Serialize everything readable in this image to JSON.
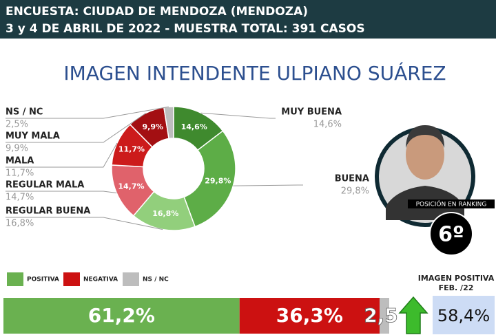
{
  "header": {
    "line1": "ENCUESTA: CIUDAD DE MENDOZA (MENDOZA)",
    "line2": "3 y 4 DE ABRIL DE 2022  - MUESTRA TOTAL: 391 CASOS"
  },
  "title": "IMAGEN INTENDENTE  ULPIANO SUÁREZ",
  "ranking": {
    "label": "POSICIÓN EN RANKING",
    "position": "6º"
  },
  "comparison": {
    "title": "IMAGEN POSITIVA",
    "subtitle": "FEB. /22",
    "value": "58,4%"
  },
  "chart_data": [
    {
      "type": "donut",
      "categories": [
        "MUY BUENA",
        "BUENA",
        "REGULAR BUENA",
        "REGULAR MALA",
        "MALA",
        "MUY MALA",
        "NS / NC"
      ],
      "values": [
        14.6,
        29.8,
        16.8,
        14.7,
        11.7,
        9.9,
        2.5
      ],
      "value_labels": [
        "14,6%",
        "29,8%",
        "16,8%",
        "14,7%",
        "11,7%",
        "9,9%",
        "2,5%"
      ],
      "colors": [
        "#3f8a2e",
        "#5dad47",
        "#92cf7c",
        "#e0626b",
        "#cc1b1b",
        "#a30f12",
        "#bdbdbd"
      ]
    },
    {
      "type": "stacked-bar",
      "series": [
        {
          "name": "POSITIVA",
          "color": "#6ab150",
          "values": [
            61.2
          ],
          "value_labels": [
            "61,2%"
          ]
        },
        {
          "name": "NEGATIVA",
          "color": "#cc1111",
          "values": [
            36.3
          ],
          "value_labels": [
            "36,3%"
          ]
        },
        {
          "name": "NS / NC",
          "color": "#bdbdbd",
          "values": [
            2.5
          ],
          "value_labels": [
            "2,5"
          ]
        }
      ]
    }
  ]
}
